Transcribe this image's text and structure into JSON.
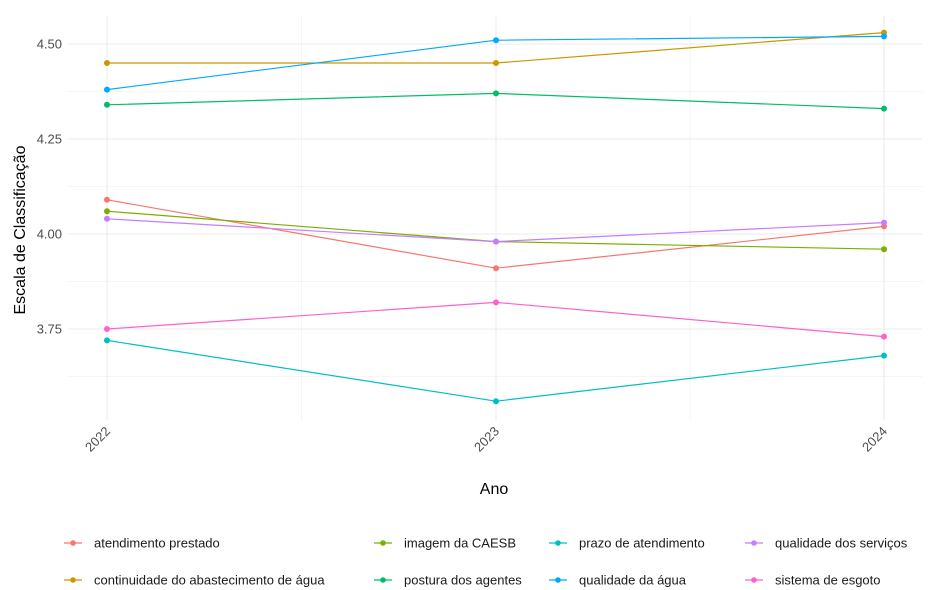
{
  "chart_data": {
    "type": "line",
    "title": "",
    "xlabel": "Ano",
    "ylabel": "Escala de Classificação",
    "categories": [
      "2022",
      "2023",
      "2024"
    ],
    "y_ticks": [
      "3.75",
      "4.00",
      "4.25",
      "4.50"
    ],
    "ylim": [
      3.53,
      4.58
    ],
    "grid": true,
    "legend_position": "bottom",
    "series": [
      {
        "name": "atendimento prestado",
        "color": "#F8766D",
        "values": [
          4.09,
          3.91,
          4.02
        ]
      },
      {
        "name": "continuidade do abastecimento de água",
        "color": "#CD9600",
        "values": [
          4.45,
          4.45,
          4.53
        ]
      },
      {
        "name": "imagem da CAESB",
        "color": "#7CAE00",
        "values": [
          4.06,
          3.98,
          3.96
        ]
      },
      {
        "name": "postura dos agentes",
        "color": "#00BE67",
        "values": [
          4.34,
          4.37,
          4.33
        ]
      },
      {
        "name": "prazo de atendimento",
        "color": "#00BFC4",
        "values": [
          3.72,
          3.56,
          3.68
        ]
      },
      {
        "name": "qualidade da água",
        "color": "#00A9FF",
        "values": [
          4.38,
          4.51,
          4.52
        ]
      },
      {
        "name": "qualidade dos serviços",
        "color": "#C77CFF",
        "values": [
          4.04,
          3.98,
          4.03
        ]
      },
      {
        "name": "sistema de esgoto",
        "color": "#FF61CC",
        "values": [
          3.75,
          3.82,
          3.73
        ]
      }
    ],
    "legend_order": [
      "atendimento prestado",
      "imagem da CAESB",
      "prazo de atendimento",
      "qualidade dos serviços",
      "continuidade do abastecimento de água",
      "postura dos agentes",
      "qualidade da água",
      "sistema de esgoto"
    ]
  }
}
